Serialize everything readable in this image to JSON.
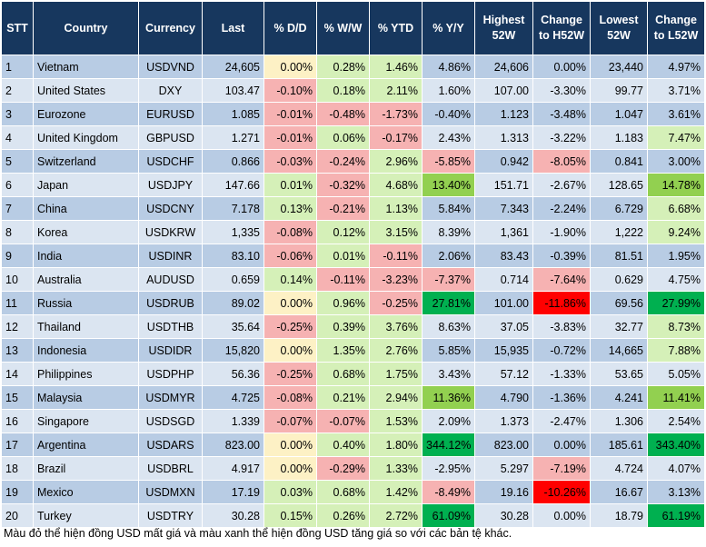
{
  "headers": [
    "STT",
    "Country",
    "Currency",
    "Last",
    "% D/D",
    "% W/W",
    "% YTD",
    "% Y/Y",
    "Highest 52W",
    "Change to H52W",
    "Lowest 52W",
    "Change to L52W"
  ],
  "rows": [
    {
      "stt": "1",
      "country": "Vietnam",
      "currency": "USDVND",
      "last": "24,605",
      "dd": "0.00%",
      "ww": "0.28%",
      "ytd": "1.46%",
      "yy": "4.86%",
      "h52": "24,606",
      "ch52": "0.00%",
      "l52": "23,440",
      "cl52": "4.97%"
    },
    {
      "stt": "2",
      "country": "United States",
      "currency": "DXY",
      "last": "103.47",
      "dd": "-0.10%",
      "ww": "0.18%",
      "ytd": "2.11%",
      "yy": "1.60%",
      "h52": "107.00",
      "ch52": "-3.30%",
      "l52": "99.77",
      "cl52": "3.71%"
    },
    {
      "stt": "3",
      "country": "Eurozone",
      "currency": "EURUSD",
      "last": "1.085",
      "dd": "-0.01%",
      "ww": "-0.48%",
      "ytd": "-1.73%",
      "yy": "-0.40%",
      "h52": "1.123",
      "ch52": "-3.48%",
      "l52": "1.047",
      "cl52": "3.61%"
    },
    {
      "stt": "4",
      "country": "United Kingdom",
      "currency": "GBPUSD",
      "last": "1.271",
      "dd": "-0.01%",
      "ww": "0.06%",
      "ytd": "-0.17%",
      "yy": "2.43%",
      "h52": "1.313",
      "ch52": "-3.22%",
      "l52": "1.183",
      "cl52": "7.47%"
    },
    {
      "stt": "5",
      "country": "Switzerland",
      "currency": "USDCHF",
      "last": "0.866",
      "dd": "-0.03%",
      "ww": "-0.24%",
      "ytd": "2.96%",
      "yy": "-5.85%",
      "h52": "0.942",
      "ch52": "-8.05%",
      "l52": "0.841",
      "cl52": "3.00%"
    },
    {
      "stt": "6",
      "country": "Japan",
      "currency": "USDJPY",
      "last": "147.66",
      "dd": "0.01%",
      "ww": "-0.32%",
      "ytd": "4.68%",
      "yy": "13.40%",
      "h52": "151.71",
      "ch52": "-2.67%",
      "l52": "128.65",
      "cl52": "14.78%"
    },
    {
      "stt": "7",
      "country": "China",
      "currency": "USDCNY",
      "last": "7.178",
      "dd": "0.13%",
      "ww": "-0.21%",
      "ytd": "1.13%",
      "yy": "5.84%",
      "h52": "7.343",
      "ch52": "-2.24%",
      "l52": "6.729",
      "cl52": "6.68%"
    },
    {
      "stt": "8",
      "country": "Korea",
      "currency": "USDKRW",
      "last": "1,335",
      "dd": "-0.08%",
      "ww": "0.12%",
      "ytd": "3.15%",
      "yy": "8.39%",
      "h52": "1,361",
      "ch52": "-1.90%",
      "l52": "1,222",
      "cl52": "9.24%"
    },
    {
      "stt": "9",
      "country": "India",
      "currency": "USDINR",
      "last": "83.10",
      "dd": "-0.06%",
      "ww": "0.01%",
      "ytd": "-0.11%",
      "yy": "2.06%",
      "h52": "83.43",
      "ch52": "-0.39%",
      "l52": "81.51",
      "cl52": "1.95%"
    },
    {
      "stt": "10",
      "country": "Australia",
      "currency": "AUDUSD",
      "last": "0.659",
      "dd": "0.14%",
      "ww": "-0.11%",
      "ytd": "-3.23%",
      "yy": "-7.37%",
      "h52": "0.714",
      "ch52": "-7.64%",
      "l52": "0.629",
      "cl52": "4.75%"
    },
    {
      "stt": "11",
      "country": "Russia",
      "currency": "USDRUB",
      "last": "89.02",
      "dd": "0.00%",
      "ww": "0.96%",
      "ytd": "-0.25%",
      "yy": "27.81%",
      "h52": "101.00",
      "ch52": "-11.86%",
      "l52": "69.56",
      "cl52": "27.99%"
    },
    {
      "stt": "12",
      "country": "Thailand",
      "currency": "USDTHB",
      "last": "35.64",
      "dd": "-0.25%",
      "ww": "0.39%",
      "ytd": "3.76%",
      "yy": "8.63%",
      "h52": "37.05",
      "ch52": "-3.83%",
      "l52": "32.77",
      "cl52": "8.73%"
    },
    {
      "stt": "13",
      "country": "Indonesia",
      "currency": "USDIDR",
      "last": "15,820",
      "dd": "0.00%",
      "ww": "1.35%",
      "ytd": "2.76%",
      "yy": "5.85%",
      "h52": "15,935",
      "ch52": "-0.72%",
      "l52": "14,665",
      "cl52": "7.88%"
    },
    {
      "stt": "14",
      "country": "Philippines",
      "currency": "USDPHP",
      "last": "56.36",
      "dd": "-0.25%",
      "ww": "0.68%",
      "ytd": "1.75%",
      "yy": "3.43%",
      "h52": "57.12",
      "ch52": "-1.33%",
      "l52": "53.65",
      "cl52": "5.05%"
    },
    {
      "stt": "15",
      "country": "Malaysia",
      "currency": "USDMYR",
      "last": "4.725",
      "dd": "-0.08%",
      "ww": "0.21%",
      "ytd": "2.94%",
      "yy": "11.36%",
      "h52": "4.790",
      "ch52": "-1.36%",
      "l52": "4.241",
      "cl52": "11.41%"
    },
    {
      "stt": "16",
      "country": "Singapore",
      "currency": "USDSGD",
      "last": "1.339",
      "dd": "-0.07%",
      "ww": "-0.07%",
      "ytd": "1.53%",
      "yy": "2.09%",
      "h52": "1.373",
      "ch52": "-2.47%",
      "l52": "1.306",
      "cl52": "2.54%"
    },
    {
      "stt": "17",
      "country": "Argentina",
      "currency": "USDARS",
      "last": "823.00",
      "dd": "0.00%",
      "ww": "0.40%",
      "ytd": "1.80%",
      "yy": "344.12%",
      "h52": "823.00",
      "ch52": "0.00%",
      "l52": "185.61",
      "cl52": "343.40%"
    },
    {
      "stt": "18",
      "country": "Brazil",
      "currency": "USDBRL",
      "last": "4.917",
      "dd": "0.00%",
      "ww": "-0.29%",
      "ytd": "1.33%",
      "yy": "-2.95%",
      "h52": "5.297",
      "ch52": "-7.19%",
      "l52": "4.724",
      "cl52": "4.07%"
    },
    {
      "stt": "19",
      "country": "Mexico",
      "currency": "USDMXN",
      "last": "17.19",
      "dd": "0.03%",
      "ww": "0.68%",
      "ytd": "1.42%",
      "yy": "-8.49%",
      "h52": "19.16",
      "ch52": "-10.26%",
      "l52": "16.67",
      "cl52": "3.13%"
    },
    {
      "stt": "20",
      "country": "Turkey",
      "currency": "USDTRY",
      "last": "30.28",
      "dd": "0.15%",
      "ww": "0.26%",
      "ytd": "2.72%",
      "yy": "61.09%",
      "h52": "30.28",
      "ch52": "0.00%",
      "l52": "18.79",
      "cl52": "61.19%"
    }
  ],
  "footnote": "Màu đỏ thể hiện đồng USD mất giá và màu xanh thể hiện đồng USD tăng giá so với các bản tệ khác.",
  "colors": {
    "header_bg": "#17375e",
    "row_odd": "#b8cce4",
    "row_even": "#dbe5f1",
    "light_red": "#f6b2b2",
    "strong_red": "#ff0000",
    "light_green": "#d5f0b8",
    "mid_green": "#92d050",
    "strong_green": "#00b050",
    "neutral_yellow": "#fdf1c5"
  }
}
